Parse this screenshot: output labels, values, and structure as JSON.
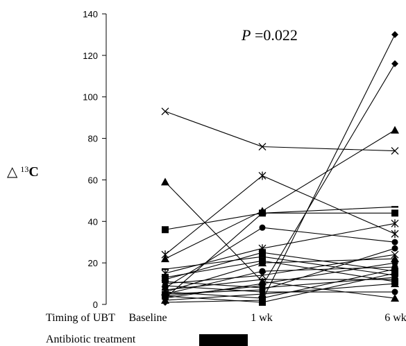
{
  "chart_data": {
    "type": "line",
    "x": [
      "Baseline",
      "1 wk",
      "6 wk"
    ],
    "ylabel_symbol": "△",
    "ylabel_sup": "13",
    "ylabel_main": "C",
    "yticks": [
      0,
      20,
      40,
      60,
      80,
      100,
      120,
      140
    ],
    "ylim": [
      0,
      140
    ],
    "annotation_p": "P",
    "annotation_value": " =0.022",
    "timing_label": "Timing of UBT",
    "treatment_label": "Antibiotic treatment",
    "grid": false,
    "legend": "none",
    "series": [
      {
        "values": [
          93,
          76,
          74
        ],
        "marker": "x"
      },
      {
        "values": [
          59,
          11,
          3
        ],
        "marker": "triangle"
      },
      {
        "values": [
          36,
          44,
          44
        ],
        "marker": "square"
      },
      {
        "values": [
          24,
          62,
          34
        ],
        "marker": "asterisk"
      },
      {
        "values": [
          22,
          45,
          84
        ],
        "marker": "triangle"
      },
      {
        "values": [
          15,
          27,
          39
        ],
        "marker": "asterisk"
      },
      {
        "values": [
          8,
          37,
          30
        ],
        "marker": "circle"
      },
      {
        "values": [
          1,
          2,
          130
        ],
        "marker": "diamond"
      },
      {
        "values": [
          4,
          9,
          116
        ],
        "marker": "diamond"
      },
      {
        "values": [
          3,
          44,
          47
        ],
        "marker": "dash"
      },
      {
        "values": [
          17,
          23,
          14
        ],
        "marker": "dash"
      },
      {
        "values": [
          12,
          25,
          16
        ],
        "marker": "square"
      },
      {
        "values": [
          10,
          14,
          24
        ],
        "marker": "x"
      },
      {
        "values": [
          6,
          20,
          22
        ],
        "marker": "triangle"
      },
      {
        "values": [
          5,
          16,
          18
        ],
        "marker": "circle"
      },
      {
        "values": [
          9,
          6,
          6
        ],
        "marker": "circle"
      },
      {
        "values": [
          7,
          12,
          12
        ],
        "marker": "dash"
      },
      {
        "values": [
          2,
          5,
          10
        ],
        "marker": "triangle"
      },
      {
        "values": [
          11,
          8,
          13
        ],
        "marker": "circle"
      },
      {
        "values": [
          13,
          21,
          11
        ],
        "marker": "square"
      },
      {
        "values": [
          4,
          1,
          15
        ],
        "marker": "square"
      },
      {
        "values": [
          6,
          3,
          17
        ],
        "marker": "dash"
      },
      {
        "values": [
          3,
          10,
          20
        ],
        "marker": "circle"
      },
      {
        "values": [
          5,
          7,
          27
        ],
        "marker": "circle"
      }
    ]
  }
}
